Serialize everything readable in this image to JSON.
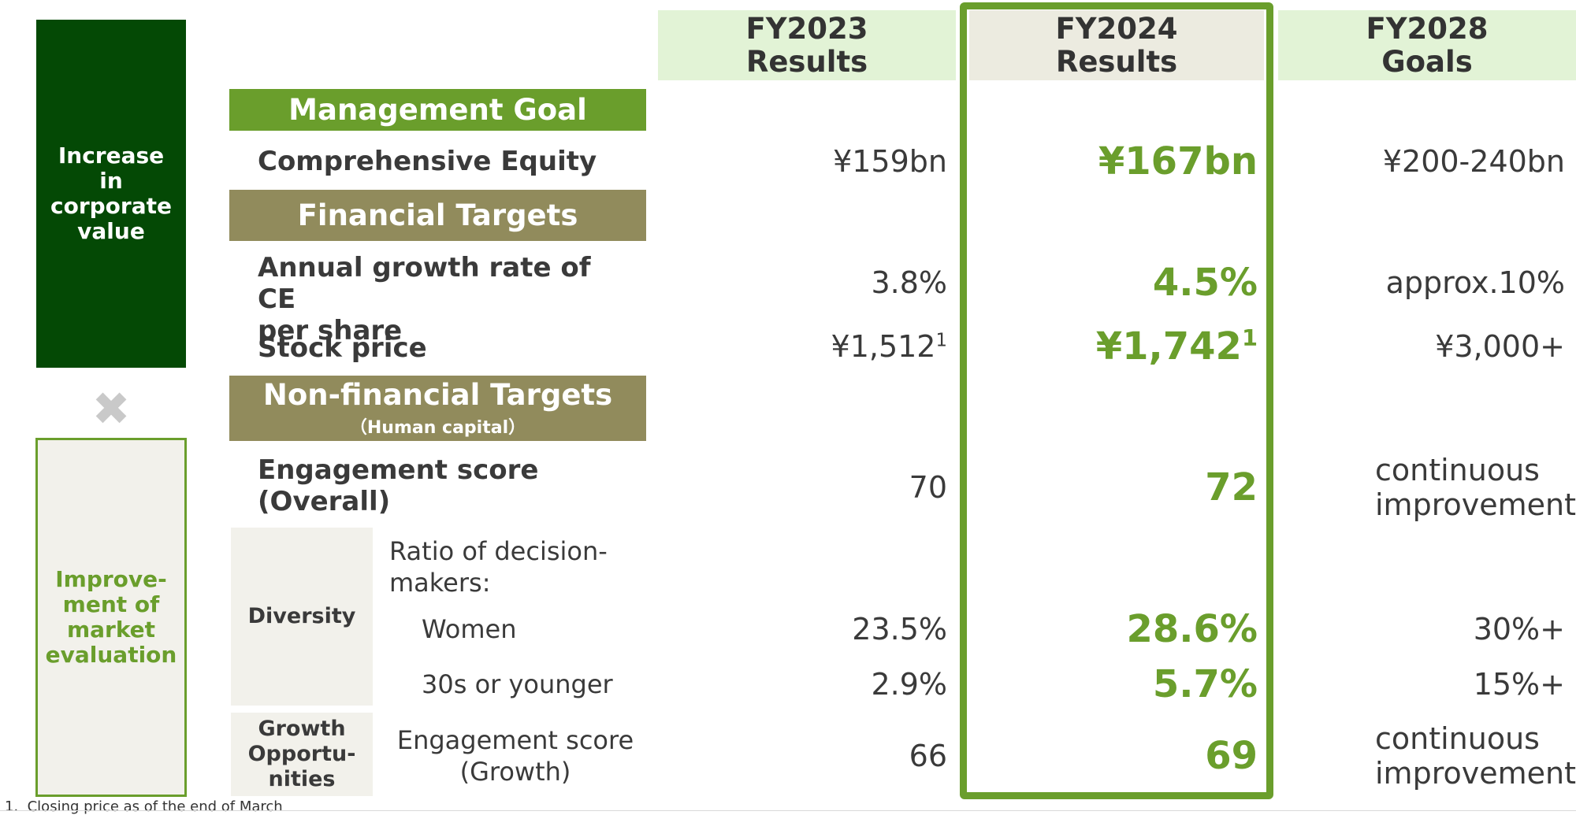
{
  "pillars": {
    "corporate_value": "Increase\nin\ncorporate\nvalue",
    "multiply_symbol": "✖",
    "market_evaluation": "Improve-\nment of\nmarket\nevaluation"
  },
  "columns": [
    {
      "line1": "FY2023",
      "line2": "Results"
    },
    {
      "line1": "FY2024",
      "line2": "Results"
    },
    {
      "line1": "FY2028",
      "line2": "Goals"
    }
  ],
  "sections": {
    "management": "Management Goal",
    "financial": "Financial Targets",
    "nonfinancial": "Non-financial Targets",
    "nonfinancial_sub": "（Human capital）"
  },
  "rows": {
    "comprehensive_equity": {
      "label": "Comprehensive Equity",
      "fy2023": "¥159bn",
      "fy2024": "¥167bn",
      "fy2028": "¥200-240bn"
    },
    "ce_growth": {
      "label": "Annual growth rate of CE\nper share",
      "fy2023": "3.8%",
      "fy2024": "4.5%",
      "fy2028": "approx.10%"
    },
    "stock_price": {
      "label": "Stock price",
      "fy2023": "¥1,512",
      "fy2024": "¥1,742",
      "fy2028": "¥3,000+",
      "footnote_mark": "1"
    },
    "engagement_overall": {
      "label": "Engagement score\n(Overall)",
      "fy2023": "70",
      "fy2024": "72",
      "fy2028": "continuous\nimprovement"
    },
    "diversity": {
      "category": "Diversity",
      "intro": "Ratio of decision-\nmakers:",
      "women": {
        "label": "Women",
        "fy2023": "23.5%",
        "fy2024": "28.6%",
        "fy2028": "30%+"
      },
      "young": {
        "label": "30s or younger",
        "fy2023": "2.9%",
        "fy2024": "5.7%",
        "fy2028": "15%+"
      }
    },
    "growth": {
      "category": "Growth\nOpportu-\nnities",
      "label": "Engagement score\n(Growth)",
      "fy2023": "66",
      "fy2024": "69",
      "fy2028": "continuous\nimprovement"
    }
  },
  "footnote": "1.  Closing price as of the end of March",
  "colors": {
    "dark_green": "#044905",
    "accent_green": "#6a9e2c",
    "olive": "#918b5c",
    "header_bg": "#e2f3d6",
    "header_bg_highlight": "#ecebe0"
  }
}
